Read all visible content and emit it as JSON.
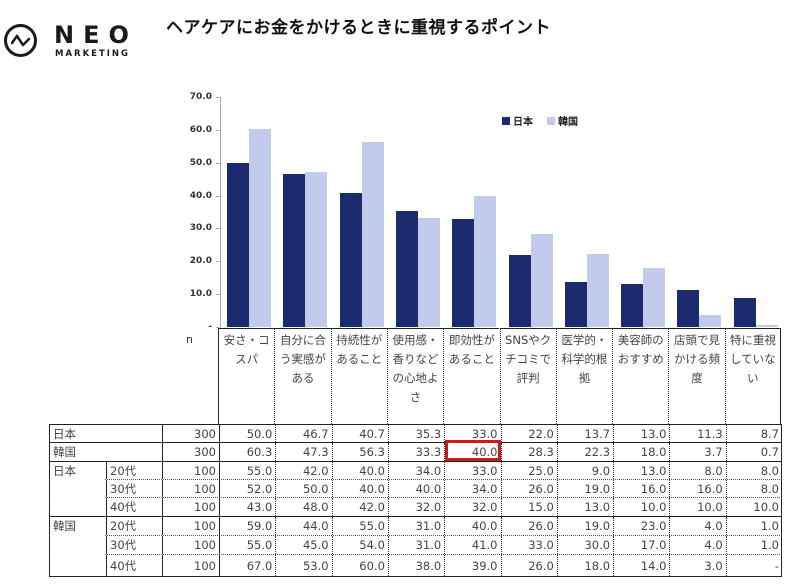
{
  "logo": {
    "name": "NEO",
    "sub": "MARKETING",
    "icon": "wave-circle-icon"
  },
  "title": "ヘアケアにお金をかけるときに重視するポイント",
  "legend": [
    {
      "label": "日本",
      "color": "#1c2a6e"
    },
    {
      "label": "韓国",
      "color": "#c3cbed"
    }
  ],
  "table": {
    "n_label": "n",
    "headers": [
      [
        "安さ・コ",
        "スパ"
      ],
      [
        "自分に合",
        "う実感が",
        "ある"
      ],
      [
        "持続性が",
        "あること"
      ],
      [
        "使用感・",
        "香りなど",
        "の心地よ",
        "さ"
      ],
      [
        "即効性が",
        "あること"
      ],
      [
        "SNSやク",
        "チコミで",
        "評判"
      ],
      [
        "医学的・",
        "科学的根",
        "拠"
      ],
      [
        "美容師の",
        "おすすめ"
      ],
      [
        "店頭で見",
        "かける頻",
        "度"
      ],
      [
        "特に重視",
        "していな",
        "い"
      ]
    ],
    "rows": [
      {
        "group": "日本",
        "age": "",
        "n": "300",
        "values": [
          "50.0",
          "46.7",
          "40.7",
          "35.3",
          "33.0",
          "22.0",
          "13.7",
          "13.0",
          "11.3",
          "8.7"
        ]
      },
      {
        "group": "韓国",
        "age": "",
        "n": "300",
        "values": [
          "60.3",
          "47.3",
          "56.3",
          "33.3",
          "40.0",
          "28.3",
          "22.3",
          "18.0",
          "3.7",
          "0.7"
        ]
      },
      {
        "group": "日本",
        "age": "20代",
        "n": "100",
        "values": [
          "55.0",
          "42.0",
          "40.0",
          "34.0",
          "33.0",
          "25.0",
          "9.0",
          "13.0",
          "8.0",
          "8.0"
        ]
      },
      {
        "group": "",
        "age": "30代",
        "n": "100",
        "values": [
          "52.0",
          "50.0",
          "40.0",
          "40.0",
          "34.0",
          "26.0",
          "19.0",
          "16.0",
          "16.0",
          "8.0"
        ]
      },
      {
        "group": "",
        "age": "40代",
        "n": "100",
        "values": [
          "43.0",
          "48.0",
          "42.0",
          "32.0",
          "32.0",
          "15.0",
          "13.0",
          "10.0",
          "10.0",
          "10.0"
        ]
      },
      {
        "group": "韓国",
        "age": "20代",
        "n": "100",
        "values": [
          "59.0",
          "44.0",
          "55.0",
          "31.0",
          "40.0",
          "26.0",
          "19.0",
          "23.0",
          "4.0",
          "1.0"
        ]
      },
      {
        "group": "",
        "age": "30代",
        "n": "100",
        "values": [
          "55.0",
          "45.0",
          "54.0",
          "31.0",
          "41.0",
          "33.0",
          "30.0",
          "17.0",
          "4.0",
          "1.0"
        ]
      },
      {
        "group": "",
        "age": "40代",
        "n": "100",
        "values": [
          "67.0",
          "53.0",
          "60.0",
          "38.0",
          "39.0",
          "26.0",
          "18.0",
          "14.0",
          "3.0",
          "-"
        ]
      }
    ],
    "highlighted_cell": {
      "row": "韓国",
      "column": "即効性があること",
      "value": "40.0",
      "color": "#d0181c"
    }
  },
  "chart_data": {
    "type": "bar",
    "title": "ヘアケアにお金をかけるときに重視するポイント",
    "categories": [
      "安さ・コスパ",
      "自分に合う実感がある",
      "持続性があること",
      "使用感・香りなどの心地よさ",
      "即効性があること",
      "SNSやクチコミで評判",
      "医学的・科学的根拠",
      "美容師のおすすめ",
      "店頭で見かける頻度",
      "特に重視していない"
    ],
    "series": [
      {
        "name": "日本",
        "values": [
          50.0,
          46.7,
          40.7,
          35.3,
          33.0,
          22.0,
          13.7,
          13.0,
          11.3,
          8.7
        ],
        "color": "#1c2a6e"
      },
      {
        "name": "韓国",
        "values": [
          60.3,
          47.3,
          56.3,
          33.3,
          40.0,
          28.3,
          22.3,
          18.0,
          3.7,
          0.7
        ],
        "color": "#c3cbed"
      }
    ],
    "yticks": [
      "-",
      "10.0",
      "20.0",
      "30.0",
      "40.0",
      "50.0",
      "60.0",
      "70.0"
    ],
    "ylim": [
      0,
      70
    ],
    "xlabel": "",
    "ylabel": "",
    "legend_position": "top-right",
    "grid": false
  }
}
